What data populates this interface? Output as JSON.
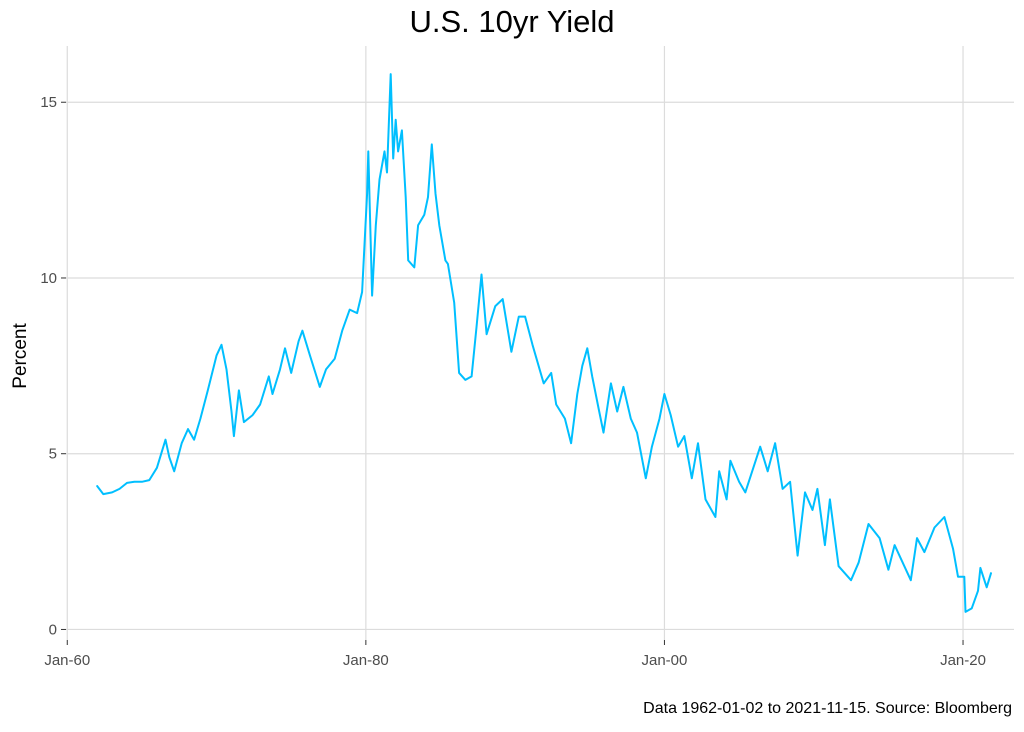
{
  "chart_data": {
    "type": "line",
    "title": "U.S. 10yr Yield",
    "xlabel": "",
    "ylabel": "Percent",
    "caption": "Data 1962-01-02 to 2021-11-15.  Source: Bloomberg",
    "x_ticks": [
      {
        "date": "1960-01-01",
        "label": "Jan-60"
      },
      {
        "date": "1980-01-01",
        "label": "Jan-80"
      },
      {
        "date": "2000-01-01",
        "label": "Jan-00"
      },
      {
        "date": "2020-01-01",
        "label": "Jan-20"
      }
    ],
    "y_ticks": [
      0,
      5,
      10,
      15
    ],
    "xlim": [
      "1959-12-01",
      "2023-06-01"
    ],
    "ylim": [
      -0.3,
      16.6
    ],
    "grid": true,
    "series": [
      {
        "color": "#00BFFF",
        "points": [
          [
            "1962-01-02",
            4.08
          ],
          [
            "1962-06-01",
            3.85
          ],
          [
            "1963-01-01",
            3.9
          ],
          [
            "1963-07-01",
            4.0
          ],
          [
            "1964-01-01",
            4.17
          ],
          [
            "1964-07-01",
            4.2
          ],
          [
            "1965-01-01",
            4.2
          ],
          [
            "1965-07-01",
            4.25
          ],
          [
            "1966-01-01",
            4.6
          ],
          [
            "1966-08-01",
            5.4
          ],
          [
            "1966-11-01",
            4.9
          ],
          [
            "1967-03-01",
            4.5
          ],
          [
            "1967-09-01",
            5.3
          ],
          [
            "1968-02-01",
            5.7
          ],
          [
            "1968-07-01",
            5.4
          ],
          [
            "1968-12-01",
            6.0
          ],
          [
            "1969-06-01",
            6.8
          ],
          [
            "1970-01-01",
            7.8
          ],
          [
            "1970-05-01",
            8.1
          ],
          [
            "1970-09-01",
            7.4
          ],
          [
            "1971-01-01",
            6.2
          ],
          [
            "1971-03-01",
            5.5
          ],
          [
            "1971-07-01",
            6.8
          ],
          [
            "1971-11-01",
            5.9
          ],
          [
            "1972-06-01",
            6.1
          ],
          [
            "1972-12-01",
            6.4
          ],
          [
            "1973-07-01",
            7.2
          ],
          [
            "1973-10-01",
            6.7
          ],
          [
            "1974-04-01",
            7.4
          ],
          [
            "1974-08-01",
            8.0
          ],
          [
            "1975-01-01",
            7.3
          ],
          [
            "1975-07-01",
            8.2
          ],
          [
            "1975-10-01",
            8.5
          ],
          [
            "1976-04-01",
            7.8
          ],
          [
            "1976-12-01",
            6.9
          ],
          [
            "1977-05-01",
            7.4
          ],
          [
            "1977-12-01",
            7.7
          ],
          [
            "1978-06-01",
            8.5
          ],
          [
            "1978-12-01",
            9.1
          ],
          [
            "1979-06-01",
            9.0
          ],
          [
            "1979-10-01",
            9.6
          ],
          [
            "1980-02-01",
            12.4
          ],
          [
            "1980-03-01",
            13.6
          ],
          [
            "1980-06-01",
            9.5
          ],
          [
            "1980-09-01",
            11.5
          ],
          [
            "1980-12-01",
            12.8
          ],
          [
            "1981-04-01",
            13.6
          ],
          [
            "1981-06-01",
            13.0
          ],
          [
            "1981-09-01",
            15.8
          ],
          [
            "1981-11-01",
            13.4
          ],
          [
            "1982-01-01",
            14.5
          ],
          [
            "1982-03-01",
            13.6
          ],
          [
            "1982-06-01",
            14.2
          ],
          [
            "1982-09-01",
            12.3
          ],
          [
            "1982-11-01",
            10.5
          ],
          [
            "1983-04-01",
            10.3
          ],
          [
            "1983-07-01",
            11.5
          ],
          [
            "1983-12-01",
            11.8
          ],
          [
            "1984-03-01",
            12.3
          ],
          [
            "1984-06-01",
            13.8
          ],
          [
            "1984-09-01",
            12.4
          ],
          [
            "1984-12-01",
            11.5
          ],
          [
            "1985-05-01",
            10.5
          ],
          [
            "1985-07-01",
            10.4
          ],
          [
            "1985-12-01",
            9.3
          ],
          [
            "1986-04-01",
            7.3
          ],
          [
            "1986-09-01",
            7.1
          ],
          [
            "1987-02-01",
            7.2
          ],
          [
            "1987-06-01",
            8.6
          ],
          [
            "1987-10-01",
            10.1
          ],
          [
            "1988-02-01",
            8.4
          ],
          [
            "1988-09-01",
            9.2
          ],
          [
            "1989-03-01",
            9.4
          ],
          [
            "1989-10-01",
            7.9
          ],
          [
            "1990-04-01",
            8.9
          ],
          [
            "1990-09-01",
            8.9
          ],
          [
            "1991-03-01",
            8.1
          ],
          [
            "1991-12-01",
            7.0
          ],
          [
            "1992-06-01",
            7.3
          ],
          [
            "1992-10-01",
            6.4
          ],
          [
            "1993-05-01",
            6.0
          ],
          [
            "1993-10-01",
            5.3
          ],
          [
            "1994-03-01",
            6.7
          ],
          [
            "1994-07-01",
            7.5
          ],
          [
            "1994-11-01",
            8.0
          ],
          [
            "1995-03-01",
            7.2
          ],
          [
            "1995-08-01",
            6.3
          ],
          [
            "1995-12-01",
            5.6
          ],
          [
            "1996-06-01",
            7.0
          ],
          [
            "1996-11-01",
            6.2
          ],
          [
            "1997-04-01",
            6.9
          ],
          [
            "1997-10-01",
            6.0
          ],
          [
            "1998-03-01",
            5.6
          ],
          [
            "1998-10-01",
            4.3
          ],
          [
            "1999-03-01",
            5.2
          ],
          [
            "1999-09-01",
            6.0
          ],
          [
            "2000-01-01",
            6.7
          ],
          [
            "2000-06-01",
            6.1
          ],
          [
            "2000-12-01",
            5.2
          ],
          [
            "2001-05-01",
            5.5
          ],
          [
            "2001-11-01",
            4.3
          ],
          [
            "2002-04-01",
            5.3
          ],
          [
            "2002-10-01",
            3.7
          ],
          [
            "2003-06-01",
            3.2
          ],
          [
            "2003-09-01",
            4.5
          ],
          [
            "2004-03-01",
            3.7
          ],
          [
            "2004-06-01",
            4.8
          ],
          [
            "2005-01-01",
            4.2
          ],
          [
            "2005-06-01",
            3.9
          ],
          [
            "2006-06-01",
            5.2
          ],
          [
            "2006-12-01",
            4.5
          ],
          [
            "2007-06-01",
            5.3
          ],
          [
            "2007-12-01",
            4.0
          ],
          [
            "2008-06-01",
            4.2
          ],
          [
            "2008-12-01",
            2.1
          ],
          [
            "2009-06-01",
            3.9
          ],
          [
            "2009-12-01",
            3.4
          ],
          [
            "2010-04-01",
            4.0
          ],
          [
            "2010-10-01",
            2.4
          ],
          [
            "2011-02-01",
            3.7
          ],
          [
            "2011-09-01",
            1.8
          ],
          [
            "2012-07-01",
            1.4
          ],
          [
            "2013-01-01",
            1.9
          ],
          [
            "2013-09-01",
            3.0
          ],
          [
            "2014-06-01",
            2.6
          ],
          [
            "2015-01-01",
            1.7
          ],
          [
            "2015-06-01",
            2.4
          ],
          [
            "2016-07-01",
            1.4
          ],
          [
            "2016-12-01",
            2.6
          ],
          [
            "2017-06-01",
            2.2
          ],
          [
            "2018-02-01",
            2.9
          ],
          [
            "2018-10-01",
            3.2
          ],
          [
            "2019-05-01",
            2.3
          ],
          [
            "2019-09-01",
            1.5
          ],
          [
            "2020-02-01",
            1.5
          ],
          [
            "2020-03-01",
            0.5
          ],
          [
            "2020-08-01",
            0.6
          ],
          [
            "2021-01-01",
            1.1
          ],
          [
            "2021-03-01",
            1.75
          ],
          [
            "2021-08-01",
            1.2
          ],
          [
            "2021-11-15",
            1.6
          ]
        ]
      }
    ]
  }
}
